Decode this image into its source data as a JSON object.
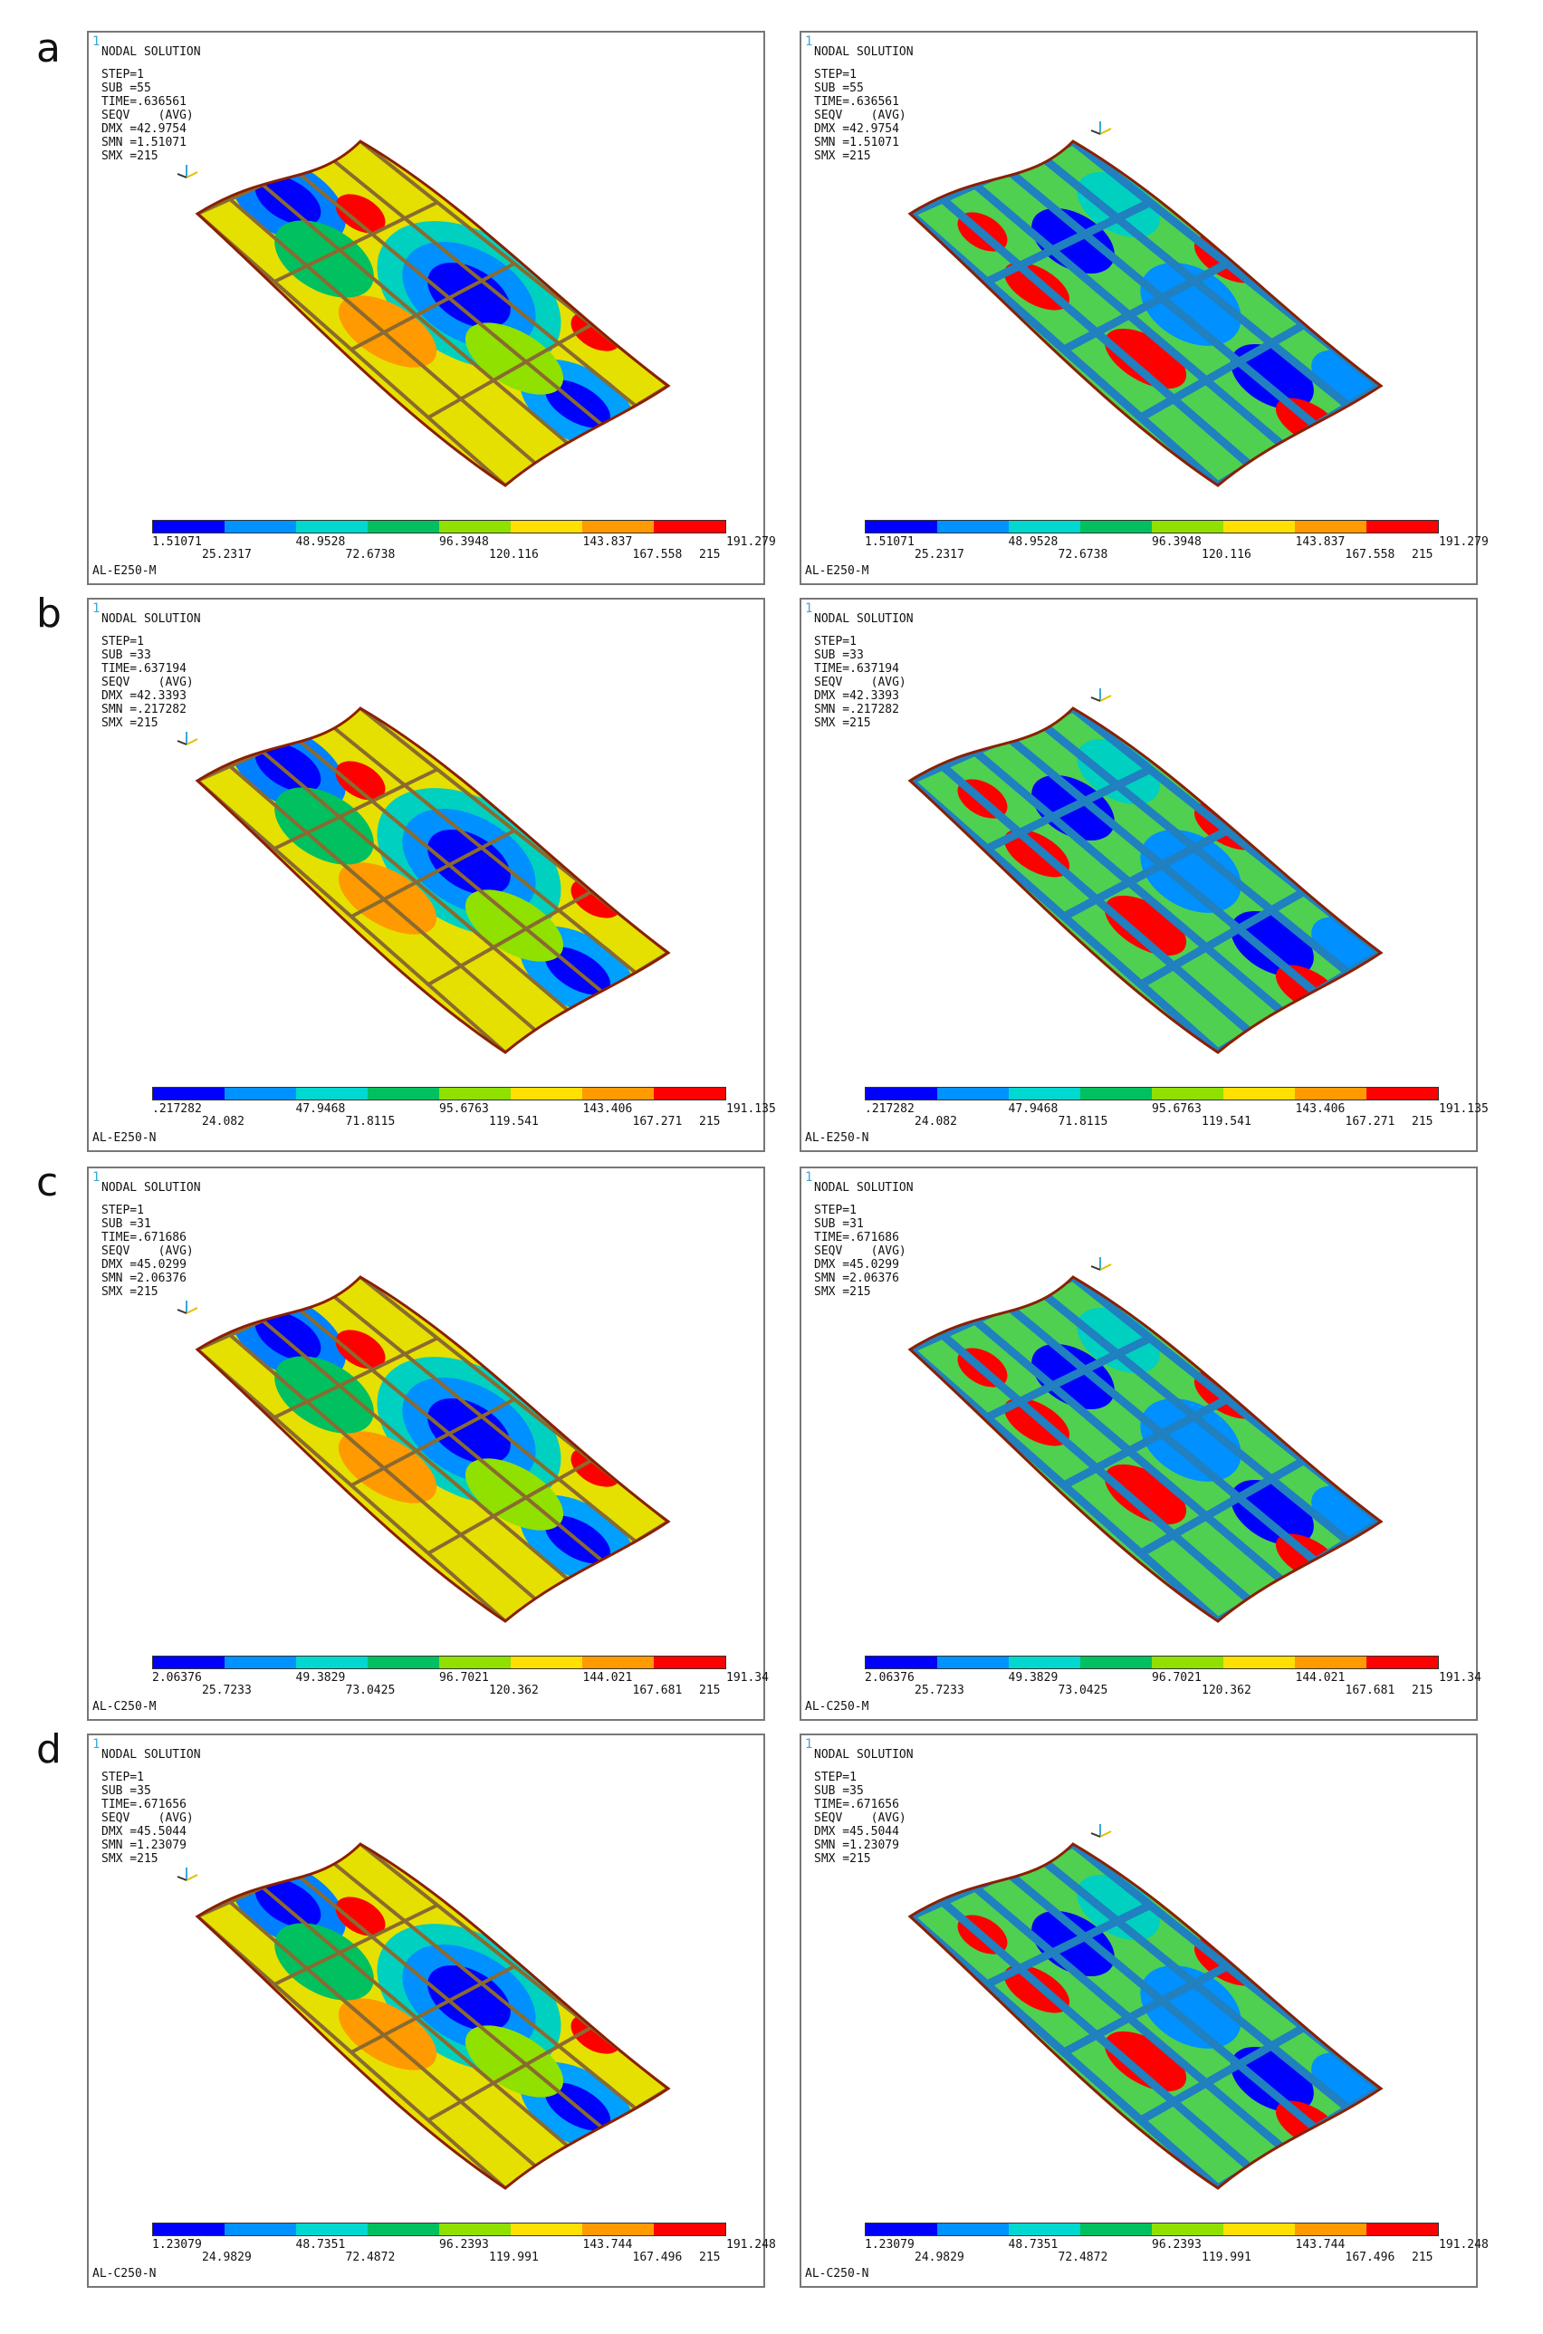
{
  "row_letters": [
    "a",
    "b",
    "c",
    "d"
  ],
  "corner_marker": "1",
  "header_title": "NODAL SOLUTION",
  "colorbar_colors": [
    "#0000ff",
    "#0092ff",
    "#00d8d0",
    "#00c060",
    "#90e000",
    "#ffe000",
    "#ff9a00",
    "#ff0000"
  ],
  "rows": [
    {
      "letter": "a",
      "left": {
        "step": "STEP=1",
        "sub": "SUB =55",
        "time": "TIME=.636561",
        "seqv": "SEQV    (AVG)",
        "dmx": "DMX =42.9754",
        "smn": "SMN =1.51071",
        "smx": "SMX =215",
        "ticks_top": [
          "1.51071",
          "48.9528",
          "96.3948",
          "143.837",
          "191.279"
        ],
        "ticks_bottom": [
          "25.2317",
          "72.6738",
          "120.116",
          "167.558",
          "215"
        ],
        "label": "AL-E250-M",
        "view": "top"
      },
      "right": {
        "step": "STEP=1",
        "sub": "SUB =55",
        "time": "TIME=.636561",
        "seqv": "SEQV    (AVG)",
        "dmx": "DMX =42.9754",
        "smn": "SMN =1.51071",
        "smx": "SMX =215",
        "ticks_top": [
          "1.51071",
          "48.9528",
          "96.3948",
          "143.837",
          "191.279"
        ],
        "ticks_bottom": [
          "25.2317",
          "72.6738",
          "120.116",
          "167.558",
          "215"
        ],
        "label": "AL-E250-M",
        "view": "bottom"
      }
    },
    {
      "letter": "b",
      "left": {
        "step": "STEP=1",
        "sub": "SUB =33",
        "time": "TIME=.637194",
        "seqv": "SEQV    (AVG)",
        "dmx": "DMX =42.3393",
        "smn": "SMN =.217282",
        "smx": "SMX =215",
        "ticks_top": [
          ".217282",
          "47.9468",
          "95.6763",
          "143.406",
          "191.135"
        ],
        "ticks_bottom": [
          "24.082",
          "71.8115",
          "119.541",
          "167.271",
          "215"
        ],
        "label": "AL-E250-N",
        "view": "top"
      },
      "right": {
        "step": "STEP=1",
        "sub": "SUB =33",
        "time": "TIME=.637194",
        "seqv": "SEQV    (AVG)",
        "dmx": "DMX =42.3393",
        "smn": "SMN =.217282",
        "smx": "SMX =215",
        "ticks_top": [
          ".217282",
          "47.9468",
          "95.6763",
          "143.406",
          "191.135"
        ],
        "ticks_bottom": [
          "24.082",
          "71.8115",
          "119.541",
          "167.271",
          "215"
        ],
        "label": "AL-E250-N",
        "view": "bottom"
      }
    },
    {
      "letter": "c",
      "left": {
        "step": "STEP=1",
        "sub": "SUB =31",
        "time": "TIME=.671686",
        "seqv": "SEQV    (AVG)",
        "dmx": "DMX =45.0299",
        "smn": "SMN =2.06376",
        "smx": "SMX =215",
        "ticks_top": [
          "2.06376",
          "49.3829",
          "96.7021",
          "144.021",
          "191.34"
        ],
        "ticks_bottom": [
          "25.7233",
          "73.0425",
          "120.362",
          "167.681",
          "215"
        ],
        "label": "AL-C250-M",
        "view": "top"
      },
      "right": {
        "step": "STEP=1",
        "sub": "SUB =31",
        "time": "TIME=.671686",
        "seqv": "SEQV    (AVG)",
        "dmx": "DMX =45.0299",
        "smn": "SMN =2.06376",
        "smx": "SMX =215",
        "ticks_top": [
          "2.06376",
          "49.3829",
          "96.7021",
          "144.021",
          "191.34"
        ],
        "ticks_bottom": [
          "25.7233",
          "73.0425",
          "120.362",
          "167.681",
          "215"
        ],
        "label": "AL-C250-M",
        "view": "bottom"
      }
    },
    {
      "letter": "d",
      "left": {
        "step": "STEP=1",
        "sub": "SUB =35",
        "time": "TIME=.671656",
        "seqv": "SEQV    (AVG)",
        "dmx": "DMX =45.5044",
        "smn": "SMN =1.23079",
        "smx": "SMX =215",
        "ticks_top": [
          "1.23079",
          "48.7351",
          "96.2393",
          "143.744",
          "191.248"
        ],
        "ticks_bottom": [
          "24.9829",
          "72.4872",
          "119.991",
          "167.496",
          "215"
        ],
        "label": "AL-C250-N",
        "view": "top"
      },
      "right": {
        "step": "STEP=1",
        "sub": "SUB =35",
        "time": "TIME=.671656",
        "seqv": "SEQV    (AVG)",
        "dmx": "DMX =45.5044",
        "smn": "SMN =1.23079",
        "smx": "SMX =215",
        "ticks_top": [
          "1.23079",
          "48.7351",
          "96.2393",
          "143.744",
          "191.248"
        ],
        "ticks_bottom": [
          "24.9829",
          "72.4872",
          "119.991",
          "167.496",
          "215"
        ],
        "label": "AL-C250-N",
        "view": "bottom"
      }
    }
  ]
}
